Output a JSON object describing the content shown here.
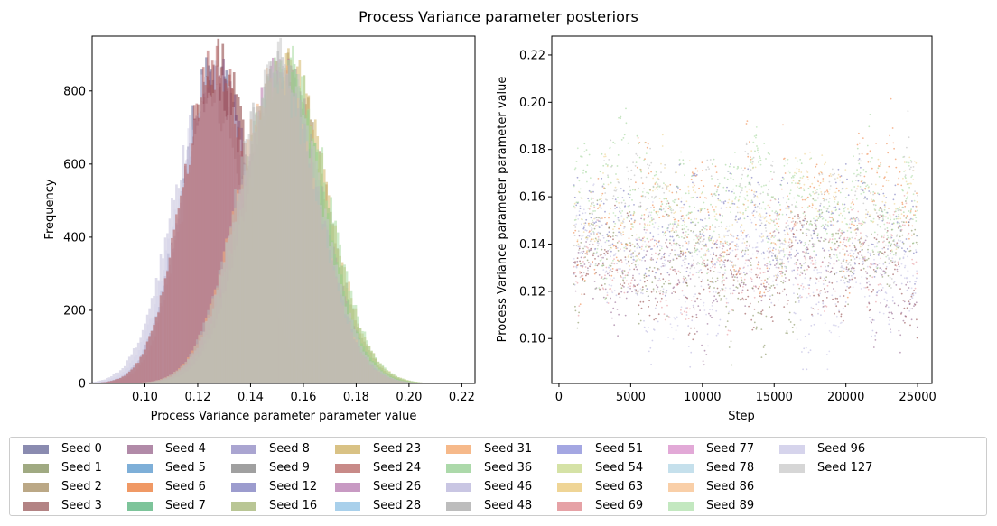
{
  "figure": {
    "title": "Process Variance parameter posteriors"
  },
  "chart_data": [
    {
      "type": "bar",
      "subtype": "overlaid-histogram",
      "xlabel": "Process Variance parameter parameter value",
      "ylabel": "Frequency",
      "xlim": [
        0.08,
        0.225
      ],
      "ylim": [
        0,
        950
      ],
      "xticks": [
        "0.10",
        "0.12",
        "0.14",
        "0.16",
        "0.18",
        "0.20",
        "0.22"
      ],
      "yticks": [
        "0",
        "200",
        "400",
        "600",
        "800"
      ],
      "series": [
        {
          "label": "Seed 0",
          "mean": 0.126,
          "sd": 0.0125,
          "peak": 860,
          "color": "#5c5f90"
        },
        {
          "label": "Seed 3",
          "mean": 0.128,
          "sd": 0.0125,
          "peak": 880,
          "color": "#8a3b3b"
        },
        {
          "label": "Seed 4",
          "mean": 0.127,
          "sd": 0.013,
          "peak": 850,
          "color": "#8b5a86"
        },
        {
          "label": "Seed 46",
          "mean": 0.124,
          "sd": 0.0135,
          "peak": 800,
          "color": "#c4c0dc"
        },
        {
          "label": "Seed 96",
          "mean": 0.126,
          "sd": 0.0135,
          "peak": 830,
          "color": "#d6d4ea"
        },
        {
          "label": "Seed 24",
          "mean": 0.127,
          "sd": 0.0128,
          "peak": 870,
          "color": "#b35e5e"
        },
        {
          "label": "Seed 2",
          "mean": 0.153,
          "sd": 0.015,
          "peak": 870,
          "color": "#a08650"
        },
        {
          "label": "Seed 23",
          "mean": 0.154,
          "sd": 0.015,
          "peak": 860,
          "color": "#d4b86a"
        },
        {
          "label": "Seed 26",
          "mean": 0.152,
          "sd": 0.0145,
          "peak": 870,
          "color": "#b572a8"
        },
        {
          "label": "Seed 89",
          "mean": 0.154,
          "sd": 0.015,
          "peak": 880,
          "color": "#a8dca0"
        },
        {
          "label": "Seed 36",
          "mean": 0.152,
          "sd": 0.015,
          "peak": 860,
          "color": "#98d090"
        },
        {
          "label": "Seed 31",
          "mean": 0.15,
          "sd": 0.015,
          "peak": 840,
          "color": "#f6b27e"
        },
        {
          "label": "Seed 127",
          "mean": 0.151,
          "sd": 0.015,
          "peak": 880,
          "color": "#c8c8c8"
        },
        {
          "label": "Seed 48",
          "mean": 0.15,
          "sd": 0.015,
          "peak": 870,
          "color": "#b8b8b8"
        }
      ]
    },
    {
      "type": "scatter",
      "subtype": "trace",
      "xlabel": "Step",
      "ylabel": "Process Variance parameter parameter value",
      "xlim": [
        -500,
        26000
      ],
      "ylim": [
        0.081,
        0.228
      ],
      "xticks": [
        "0",
        "5000",
        "10000",
        "15000",
        "20000",
        "25000"
      ],
      "yticks": [
        "0.10",
        "0.12",
        "0.14",
        "0.16",
        "0.18",
        "0.20",
        "0.22"
      ],
      "x_range": [
        1000,
        25000
      ],
      "series_summary": [
        {
          "name": "Seed 3",
          "center": 0.127,
          "sd": 0.0125,
          "color": "#8a3b3b"
        },
        {
          "name": "Seed 4",
          "center": 0.127,
          "sd": 0.013,
          "color": "#8b5a86"
        },
        {
          "name": "Seed 1",
          "center": 0.128,
          "sd": 0.013,
          "color": "#7d8a52"
        },
        {
          "name": "Seed 6",
          "center": 0.152,
          "sd": 0.015,
          "color": "#ee7d3a"
        },
        {
          "name": "Seed 12",
          "center": 0.15,
          "sd": 0.015,
          "color": "#6b6bb5"
        },
        {
          "name": "Seed 69",
          "center": 0.13,
          "sd": 0.013,
          "color": "#e6959a"
        },
        {
          "name": "Seed 63",
          "center": 0.154,
          "sd": 0.015,
          "color": "#edd088"
        },
        {
          "name": "Seed 36",
          "center": 0.153,
          "sd": 0.015,
          "color": "#98d090"
        },
        {
          "name": "Seed 89",
          "center": 0.155,
          "sd": 0.015,
          "color": "#a8dca0"
        },
        {
          "name": "Seed 48",
          "center": 0.15,
          "sd": 0.014,
          "color": "#b8b8b8"
        },
        {
          "name": "Seed 46",
          "center": 0.128,
          "sd": 0.013,
          "color": "#b4b0dc"
        },
        {
          "name": "Seed 96",
          "center": 0.129,
          "sd": 0.013,
          "color": "#c6c4e6"
        }
      ]
    }
  ],
  "legend": {
    "entries": [
      {
        "label": "Seed 0",
        "color": "#8a8bb0"
      },
      {
        "label": "Seed 1",
        "color": "#a0aa82"
      },
      {
        "label": "Seed 2",
        "color": "#bba886"
      },
      {
        "label": "Seed 3",
        "color": "#b38384"
      },
      {
        "label": "Seed 4",
        "color": "#b18aa8"
      },
      {
        "label": "Seed 5",
        "color": "#7eafd8"
      },
      {
        "label": "Seed 6",
        "color": "#f09965"
      },
      {
        "label": "Seed 7",
        "color": "#7dc49a"
      },
      {
        "label": "Seed 8",
        "color": "#aaa5d1"
      },
      {
        "label": "Seed 9",
        "color": "#a0a0a0"
      },
      {
        "label": "Seed 12",
        "color": "#9c9cce"
      },
      {
        "label": "Seed 16",
        "color": "#b9c695"
      },
      {
        "label": "Seed 23",
        "color": "#d9c285"
      },
      {
        "label": "Seed 24",
        "color": "#c88a88"
      },
      {
        "label": "Seed 26",
        "color": "#c89ac3"
      },
      {
        "label": "Seed 28",
        "color": "#a9d0eb"
      },
      {
        "label": "Seed 31",
        "color": "#f6b98a"
      },
      {
        "label": "Seed 36",
        "color": "#acd9aa"
      },
      {
        "label": "Seed 46",
        "color": "#c9c6e3"
      },
      {
        "label": "Seed 48",
        "color": "#bdbdbd"
      },
      {
        "label": "Seed 51",
        "color": "#a4a7e2"
      },
      {
        "label": "Seed 54",
        "color": "#d5e2a6"
      },
      {
        "label": "Seed 63",
        "color": "#efd596"
      },
      {
        "label": "Seed 69",
        "color": "#e6a2a6"
      },
      {
        "label": "Seed 77",
        "color": "#e2a9d7"
      },
      {
        "label": "Seed 78",
        "color": "#c5e0ec"
      },
      {
        "label": "Seed 86",
        "color": "#f9cfa8"
      },
      {
        "label": "Seed 89",
        "color": "#c3e8c0"
      },
      {
        "label": "Seed 96",
        "color": "#d6d4ec"
      },
      {
        "label": "Seed 127",
        "color": "#d6d6d6"
      }
    ]
  }
}
